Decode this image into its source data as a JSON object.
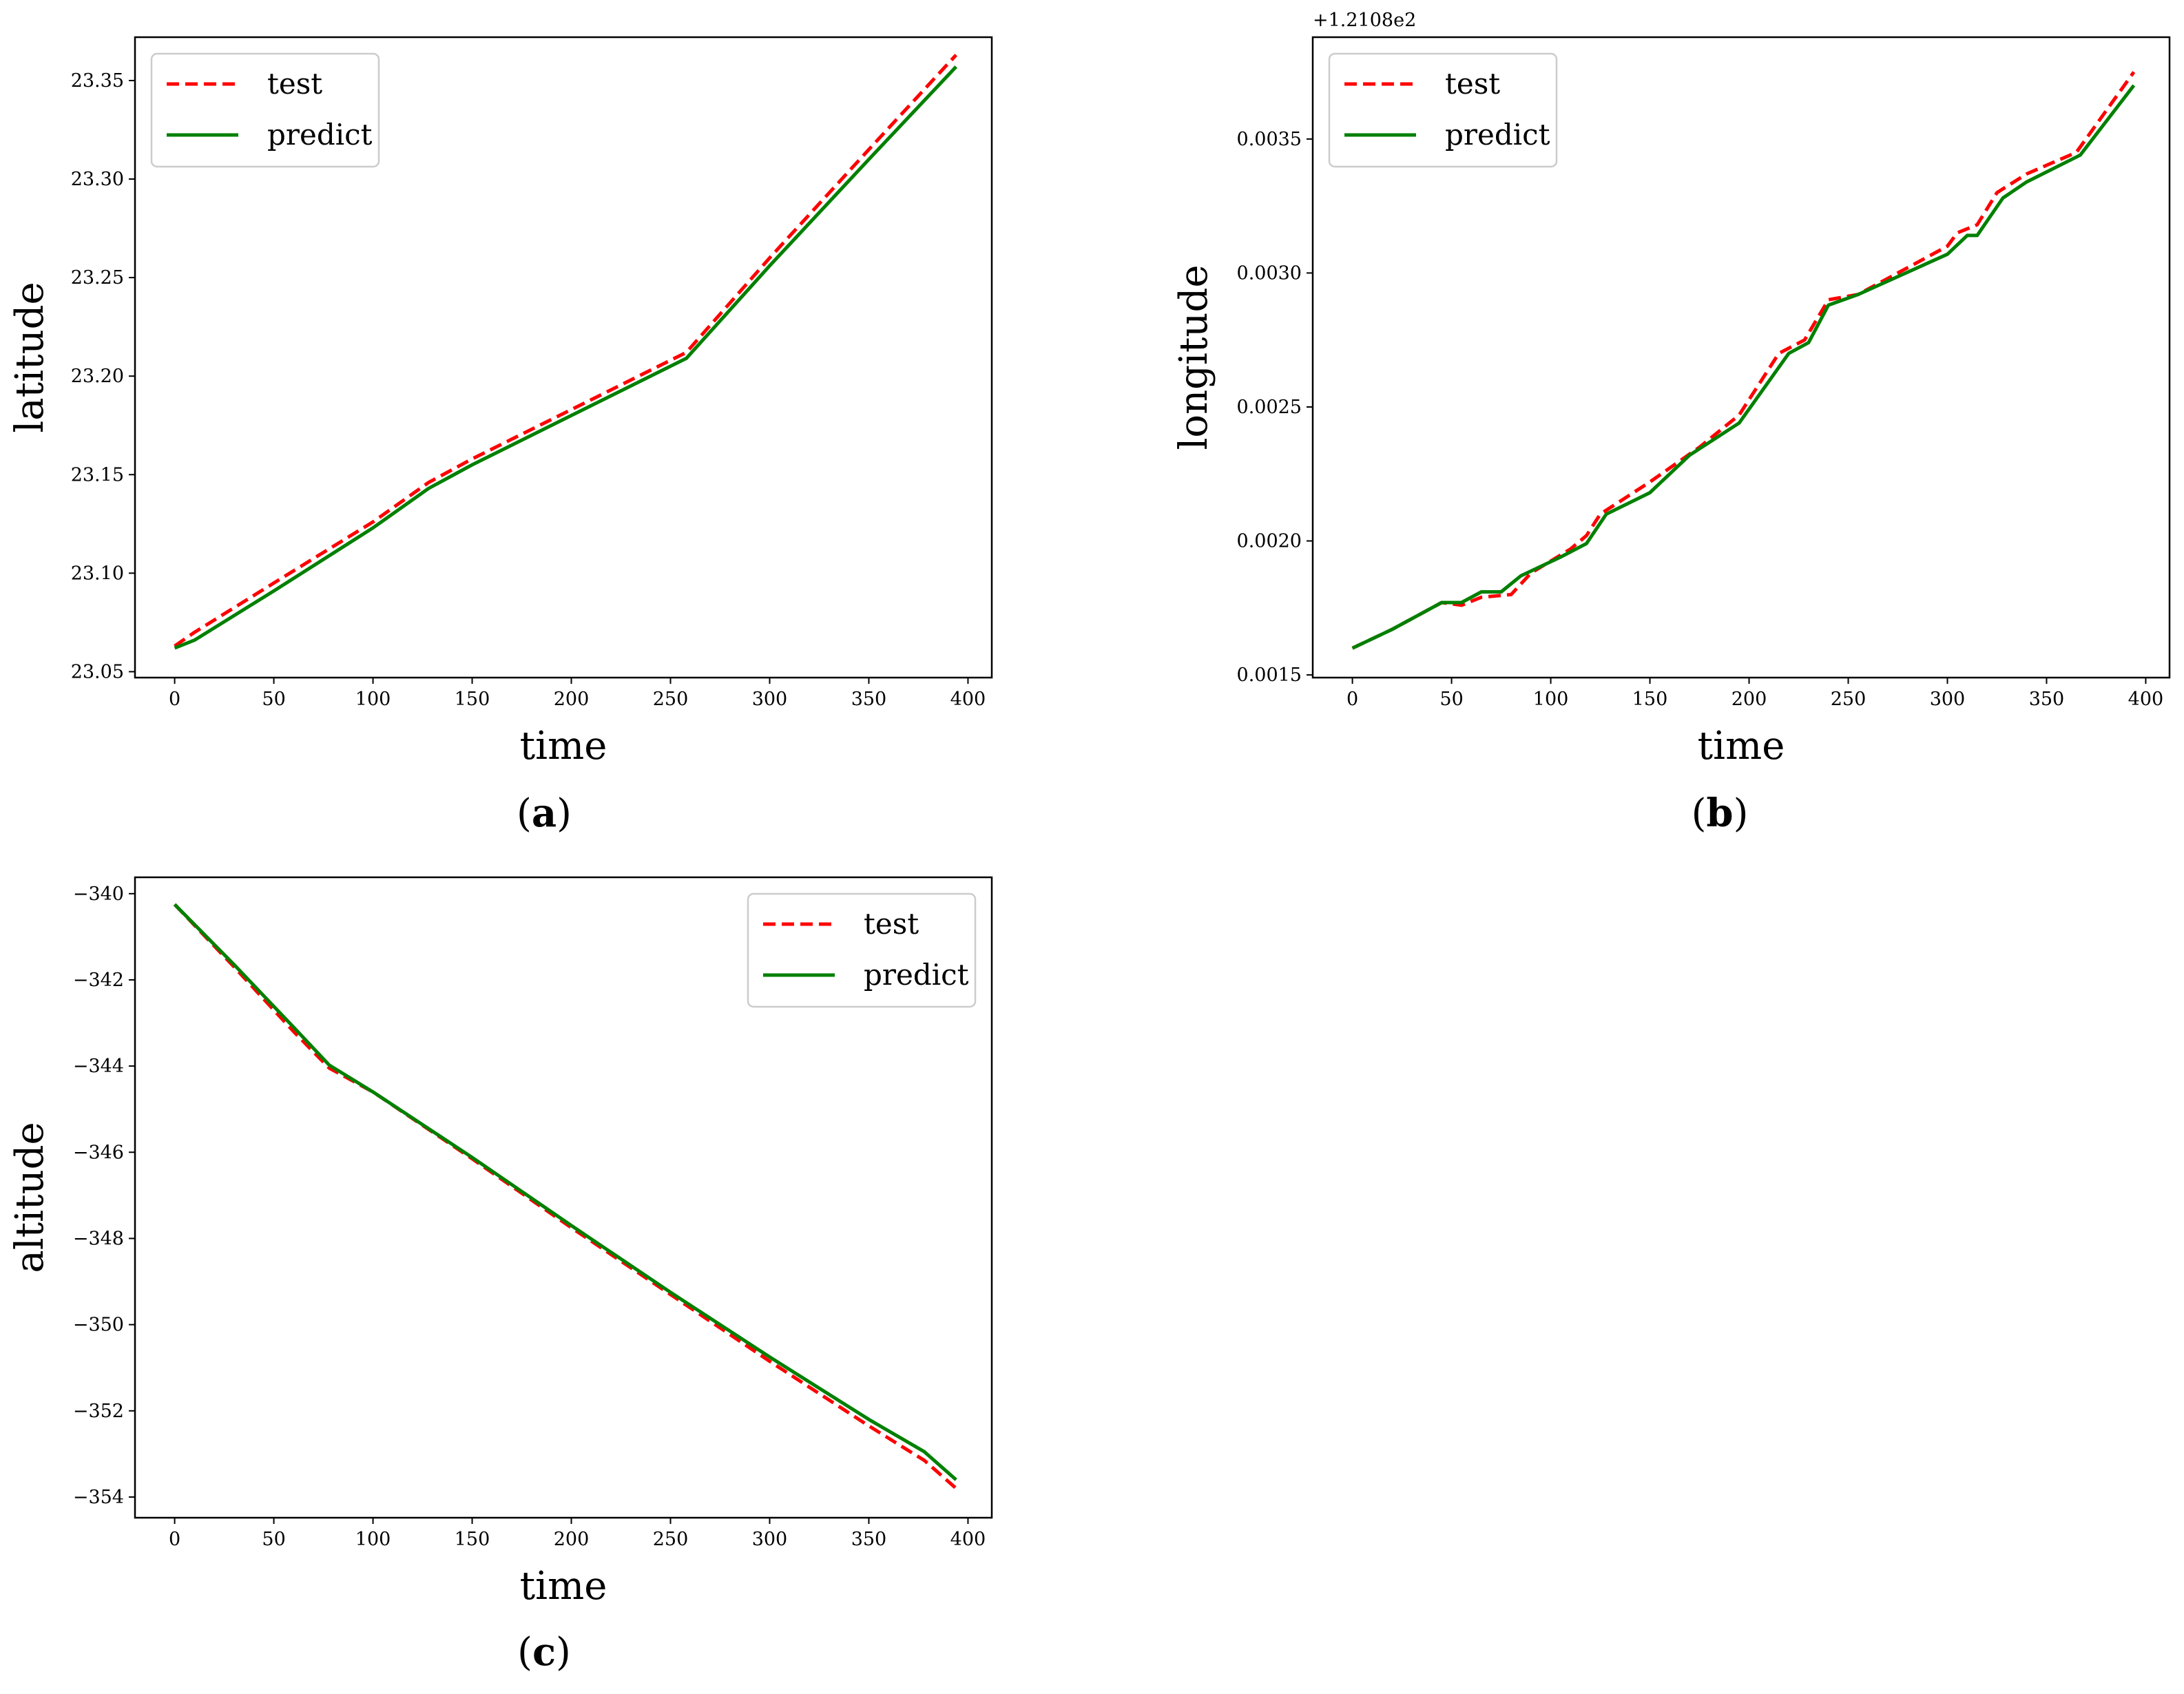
{
  "captions": [
    "a",
    "b",
    "c"
  ],
  "chart_data": [
    {
      "type": "line",
      "panel": "a",
      "title": "",
      "xlabel": "time",
      "ylabel": "latitude",
      "xlim": [
        -20,
        412
      ],
      "ylim": [
        23.047,
        23.372
      ],
      "xticks": [
        0,
        50,
        100,
        150,
        200,
        250,
        300,
        350,
        400
      ],
      "xtick_labels": [
        "0",
        "50",
        "100",
        "150",
        "200",
        "250",
        "300",
        "350",
        "400"
      ],
      "yticks": [
        23.05,
        23.1,
        23.15,
        23.2,
        23.25,
        23.3,
        23.35
      ],
      "ytick_labels": [
        "23.05",
        "23.10",
        "23.15",
        "23.20",
        "23.25",
        "23.30",
        "23.35"
      ],
      "offset_text": "",
      "grid": false,
      "legend_position": "upper-left",
      "series": [
        {
          "name": "test",
          "color": "#ff0000",
          "style": "dashed",
          "x": [
            0,
            10,
            50,
            100,
            128,
            150,
            200,
            258,
            300,
            350,
            394
          ],
          "y": [
            23.063,
            23.07,
            23.095,
            23.126,
            23.146,
            23.158,
            23.183,
            23.212,
            23.26,
            23.315,
            23.363
          ]
        },
        {
          "name": "predict",
          "color": "#008000",
          "style": "solid",
          "x": [
            0,
            10,
            50,
            100,
            128,
            150,
            200,
            258,
            300,
            350,
            394
          ],
          "y": [
            23.062,
            23.066,
            23.091,
            23.123,
            23.143,
            23.155,
            23.18,
            23.209,
            23.256,
            23.31,
            23.357
          ]
        }
      ]
    },
    {
      "type": "line",
      "panel": "b",
      "title": "",
      "xlabel": "time",
      "ylabel": "longitude",
      "xlim": [
        -20,
        412
      ],
      "ylim": [
        0.00149,
        0.00388
      ],
      "xticks": [
        0,
        50,
        100,
        150,
        200,
        250,
        300,
        350,
        400
      ],
      "xtick_labels": [
        "0",
        "50",
        "100",
        "150",
        "200",
        "250",
        "300",
        "350",
        "400"
      ],
      "yticks": [
        0.0015,
        0.002,
        0.0025,
        0.003,
        0.0035
      ],
      "ytick_labels": [
        "0.0015",
        "0.0020",
        "0.0025",
        "0.0030",
        "0.0035"
      ],
      "offset_text": "+1.2108e2",
      "grid": false,
      "legend_position": "upper-left",
      "series": [
        {
          "name": "test",
          "color": "#ff0000",
          "style": "dashed",
          "x": [
            0,
            20,
            45,
            55,
            65,
            80,
            90,
            110,
            118,
            125,
            150,
            175,
            195,
            215,
            228,
            240,
            255,
            300,
            305,
            315,
            325,
            340,
            365,
            394
          ],
          "y": [
            0.0016,
            0.00167,
            0.00177,
            0.00176,
            0.00179,
            0.0018,
            0.00188,
            0.00197,
            0.00202,
            0.0021,
            0.00222,
            0.00235,
            0.00247,
            0.0027,
            0.00275,
            0.0029,
            0.00292,
            0.0031,
            0.00315,
            0.00318,
            0.0033,
            0.00337,
            0.00345,
            0.00375
          ]
        },
        {
          "name": "predict",
          "color": "#008000",
          "style": "solid",
          "x": [
            0,
            20,
            45,
            55,
            65,
            75,
            85,
            105,
            118,
            128,
            150,
            170,
            195,
            220,
            230,
            240,
            255,
            300,
            310,
            315,
            328,
            340,
            367,
            394
          ],
          "y": [
            0.0016,
            0.00167,
            0.00177,
            0.00177,
            0.00181,
            0.00181,
            0.00187,
            0.00194,
            0.00199,
            0.0021,
            0.00218,
            0.00232,
            0.00244,
            0.0027,
            0.00274,
            0.00288,
            0.00292,
            0.00307,
            0.00314,
            0.00314,
            0.00328,
            0.00334,
            0.00344,
            0.0037
          ]
        }
      ]
    },
    {
      "type": "line",
      "panel": "c",
      "title": "",
      "xlabel": "time",
      "ylabel": "altitude",
      "xlim": [
        -20,
        412
      ],
      "ylim": [
        -354.48,
        -339.62
      ],
      "xticks": [
        0,
        50,
        100,
        150,
        200,
        250,
        300,
        350,
        400
      ],
      "xtick_labels": [
        "0",
        "50",
        "100",
        "150",
        "200",
        "250",
        "300",
        "350",
        "400"
      ],
      "yticks": [
        -354,
        -352,
        -350,
        -348,
        -346,
        -344,
        -342,
        -340
      ],
      "ytick_labels": [
        "−354",
        "−352",
        "−350",
        "−348",
        "−346",
        "−344",
        "−342",
        "−340"
      ],
      "offset_text": "",
      "grid": false,
      "legend_position": "upper-right",
      "series": [
        {
          "name": "test",
          "color": "#ff0000",
          "style": "dashed",
          "x": [
            0,
            30,
            60,
            78,
            100,
            150,
            200,
            250,
            300,
            350,
            378,
            394
          ],
          "y": [
            -340.25,
            -341.7,
            -343.2,
            -344.05,
            -344.6,
            -346.15,
            -347.75,
            -349.3,
            -350.85,
            -352.35,
            -353.15,
            -353.8
          ]
        },
        {
          "name": "predict",
          "color": "#008000",
          "style": "solid",
          "x": [
            0,
            30,
            60,
            78,
            100,
            150,
            200,
            250,
            300,
            350,
            378,
            394
          ],
          "y": [
            -340.25,
            -341.65,
            -343.1,
            -343.98,
            -344.6,
            -346.12,
            -347.7,
            -349.25,
            -350.75,
            -352.2,
            -352.95,
            -353.6
          ]
        }
      ]
    }
  ]
}
